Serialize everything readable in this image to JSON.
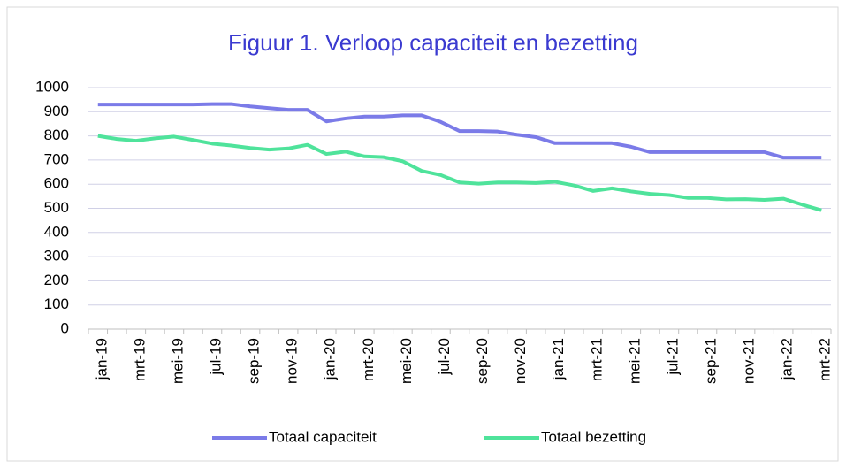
{
  "chart_data": {
    "type": "line",
    "title": "Figuur 1. Verloop capaciteit en bezetting",
    "categories": [
      "jan-19",
      null,
      "mrt-19",
      null,
      "mei-19",
      null,
      "jul-19",
      null,
      "sep-19",
      null,
      "nov-19",
      null,
      "jan-20",
      null,
      "mrt-20",
      null,
      "mei-20",
      null,
      "jul-20",
      null,
      "sep-20",
      null,
      "nov-20",
      null,
      "jan-21",
      null,
      "mrt-21",
      null,
      "mei-21",
      null,
      "jul-21",
      null,
      "sep-21",
      null,
      "nov-21",
      null,
      "jan-22",
      null,
      "mrt-22"
    ],
    "series": [
      {
        "name": "Totaal capaciteit",
        "color": "#7b7be8",
        "values": [
          930,
          930,
          930,
          930,
          930,
          930,
          932,
          932,
          922,
          915,
          908,
          908,
          860,
          872,
          880,
          880,
          885,
          885,
          858,
          820,
          820,
          818,
          805,
          795,
          770,
          770,
          770,
          770,
          755,
          733,
          733,
          733,
          733,
          733,
          733,
          733,
          710,
          710,
          710
        ]
      },
      {
        "name": "Totaal bezetting",
        "color": "#4fe39b",
        "values": [
          800,
          787,
          780,
          790,
          797,
          783,
          768,
          760,
          750,
          743,
          748,
          763,
          725,
          735,
          715,
          712,
          695,
          655,
          638,
          607,
          602,
          607,
          607,
          605,
          610,
          595,
          572,
          583,
          570,
          560,
          555,
          543,
          543,
          537,
          538,
          535,
          540,
          515,
          492
        ]
      }
    ],
    "ylim": [
      0,
      1000
    ],
    "yticks": [
      0,
      100,
      200,
      300,
      400,
      500,
      600,
      700,
      800,
      900,
      1000
    ],
    "grid": true,
    "legend": "bottom"
  }
}
